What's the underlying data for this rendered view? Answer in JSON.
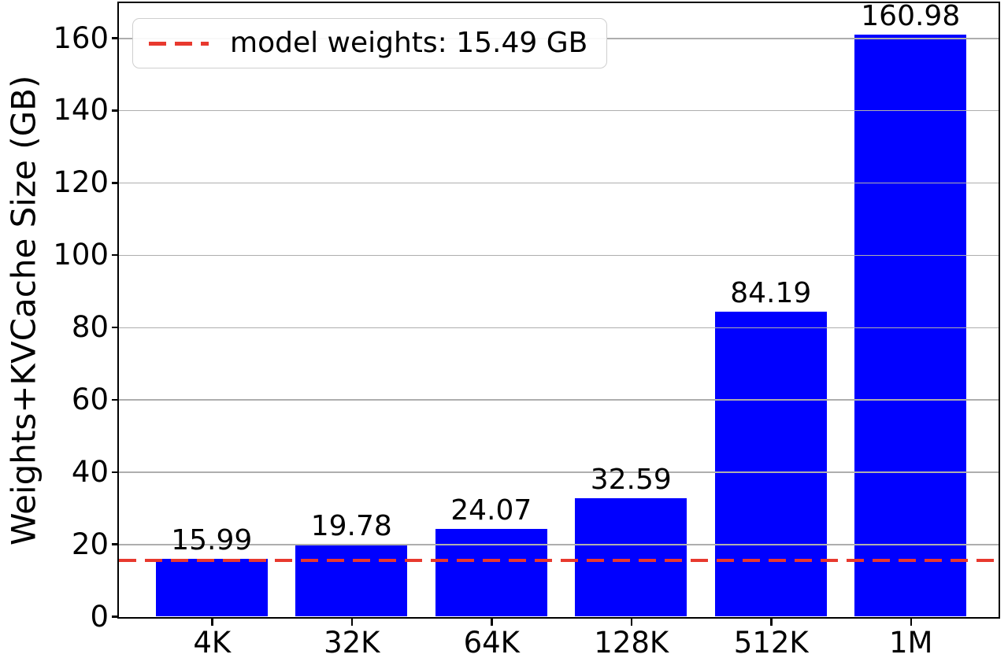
{
  "figure": {
    "background": "#ffffff"
  },
  "chart_data": {
    "type": "bar",
    "title": "",
    "xlabel": "",
    "ylabel": "Weights+KVCache Size (GB)",
    "categories": [
      "4K",
      "32K",
      "64K",
      "128K",
      "512K",
      "1M"
    ],
    "values": [
      15.99,
      19.78,
      24.07,
      32.59,
      84.19,
      160.98
    ],
    "bar_value_labels": [
      "15.99",
      "19.78",
      "24.07",
      "32.59",
      "84.19",
      "160.98"
    ],
    "bar_color": "#0000ff",
    "yticks": [
      0,
      20,
      40,
      60,
      80,
      100,
      120,
      140,
      160
    ],
    "ylim": [
      0,
      169.6
    ],
    "grid": true,
    "grid_color": "#aeaeae",
    "legend_position": "upper left",
    "reference_line": {
      "value": 15.49,
      "color": "#e8392e",
      "style": "dashed",
      "legend_label": "model weights: 15.49 GB"
    }
  }
}
